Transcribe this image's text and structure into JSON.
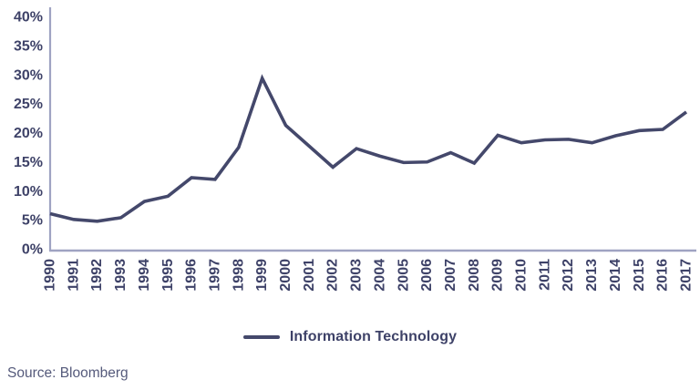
{
  "chart_data": {
    "type": "line",
    "title": "",
    "xlabel": "",
    "ylabel": "",
    "x": [
      1990,
      1991,
      1992,
      1993,
      1994,
      1995,
      1996,
      1997,
      1998,
      1999,
      2000,
      2001,
      2002,
      2003,
      2004,
      2005,
      2006,
      2007,
      2008,
      2009,
      2010,
      2011,
      2012,
      2013,
      2014,
      2015,
      2016,
      2017
    ],
    "series": [
      {
        "name": "Information Technology",
        "values": [
          6.2,
          5.2,
          4.9,
          5.5,
          8.3,
          9.2,
          12.4,
          12.1,
          17.6,
          29.5,
          21.4,
          17.8,
          14.2,
          17.4,
          16.1,
          15.0,
          15.1,
          16.7,
          14.9,
          19.7,
          18.4,
          18.9,
          19.0,
          18.4,
          19.6,
          20.5,
          20.7,
          23.7
        ]
      }
    ],
    "ylim": [
      0,
      40
    ],
    "yticks": [
      0,
      5,
      10,
      15,
      20,
      25,
      30,
      35,
      40
    ],
    "ytick_suffix": "%",
    "grid": false,
    "legend_position": "bottom-center",
    "x_tick_rotation_deg": -90,
    "colors": {
      "line": "#44486B",
      "labels": "#3E4268",
      "axis": "#9FA3C2",
      "source_text": "#555A7B"
    }
  },
  "legend": {
    "label": "Information Technology"
  },
  "source": {
    "text": "Source: Bloomberg"
  }
}
